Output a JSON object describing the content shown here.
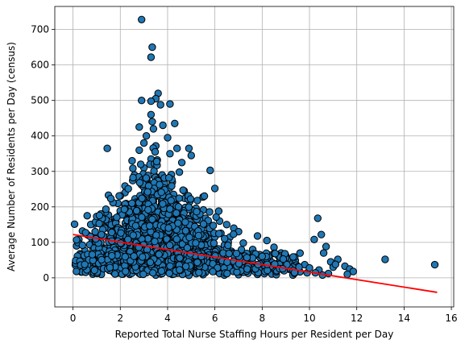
{
  "chart_data": {
    "type": "scatter",
    "title": "",
    "xlabel": "Reported Total Nurse Staffing Hours per Resident per Day",
    "ylabel": "Average Number of Residents per Day (census)",
    "xlim": [
      -0.77,
      16.1
    ],
    "ylim": [
      -82,
      765
    ],
    "xticks": [
      0,
      2,
      4,
      6,
      8,
      10,
      12,
      14,
      16
    ],
    "yticks": [
      0,
      100,
      200,
      300,
      400,
      500,
      600,
      700
    ],
    "grid": true,
    "legend": "none",
    "colors": {
      "point_fill": "#1f77b4",
      "point_edge": "#000000",
      "trend_line": "#ff0000",
      "grid": "#b0b0b0"
    },
    "trend_line": {
      "x": [
        0,
        15.4
      ],
      "y": [
        122,
        -41
      ]
    },
    "points": [
      [
        2.9,
        728
      ],
      [
        3.35,
        650
      ],
      [
        3.3,
        622
      ],
      [
        3.6,
        520
      ],
      [
        3.5,
        505
      ],
      [
        2.9,
        500
      ],
      [
        3.3,
        498
      ],
      [
        4.1,
        490
      ],
      [
        3.7,
        488
      ],
      [
        3.3,
        460
      ],
      [
        3.8,
        430
      ],
      [
        3.35,
        440
      ],
      [
        4.3,
        435
      ],
      [
        2.8,
        425
      ],
      [
        3.4,
        420
      ],
      [
        3.1,
        400
      ],
      [
        4.0,
        395
      ],
      [
        3.0,
        380
      ],
      [
        3.5,
        372
      ],
      [
        4.4,
        365
      ],
      [
        4.9,
        365
      ],
      [
        1.45,
        365
      ],
      [
        2.8,
        360
      ],
      [
        4.1,
        350
      ],
      [
        5.0,
        345
      ],
      [
        3.3,
        335
      ],
      [
        2.5,
        330
      ],
      [
        4.6,
        325
      ],
      [
        3.0,
        310
      ],
      [
        5.8,
        303
      ],
      [
        4.5,
        298
      ],
      [
        2.6,
        290
      ],
      [
        3.5,
        285
      ],
      [
        3.9,
        280
      ],
      [
        4.2,
        270
      ],
      [
        2.9,
        262
      ],
      [
        6.0,
        252
      ],
      [
        3.6,
        250
      ],
      [
        4.7,
        245
      ],
      [
        2.2,
        240
      ],
      [
        1.5,
        233
      ],
      [
        3.2,
        232
      ],
      [
        5.5,
        228
      ],
      [
        2.7,
        220
      ],
      [
        3.8,
        215
      ],
      [
        1.9,
        210
      ],
      [
        4.3,
        205
      ],
      [
        2.4,
        200
      ],
      [
        5.2,
        196
      ],
      [
        3.1,
        190
      ],
      [
        4.6,
        185
      ],
      [
        2.0,
        180
      ],
      [
        0.6,
        175
      ],
      [
        3.4,
        172
      ],
      [
        5.6,
        168
      ],
      [
        2.3,
        165
      ],
      [
        6.2,
        160
      ],
      [
        4.0,
        158
      ],
      [
        1.7,
        155
      ],
      [
        0.9,
        152
      ],
      [
        6.5,
        150
      ],
      [
        3.7,
        148
      ],
      [
        5.0,
        145
      ],
      [
        2.6,
        142
      ],
      [
        0.4,
        132
      ],
      [
        6.8,
        140
      ],
      [
        4.4,
        138
      ],
      [
        1.8,
        136
      ],
      [
        7.0,
        130
      ],
      [
        2.9,
        128
      ],
      [
        5.4,
        126
      ],
      [
        3.3,
        124
      ],
      [
        1.2,
        120
      ],
      [
        7.8,
        118
      ],
      [
        8.2,
        105
      ],
      [
        6.0,
        115
      ],
      [
        4.8,
        112
      ],
      [
        2.1,
        110
      ],
      [
        0.25,
        108
      ],
      [
        3.6,
        106
      ],
      [
        5.7,
        104
      ],
      [
        1.6,
        102
      ],
      [
        0.8,
        100
      ],
      [
        7.2,
        98
      ],
      [
        4.2,
        96
      ],
      [
        2.4,
        94
      ],
      [
        6.4,
        92
      ],
      [
        0.15,
        90
      ],
      [
        3.9,
        88
      ],
      [
        8.5,
        86
      ],
      [
        5.1,
        85
      ],
      [
        1.3,
        84
      ],
      [
        2.8,
        82
      ],
      [
        7.6,
        80
      ],
      [
        4.6,
        78
      ],
      [
        0.5,
        76
      ],
      [
        6.7,
        75
      ],
      [
        3.1,
        74
      ],
      [
        1.9,
        72
      ],
      [
        5.9,
        71
      ],
      [
        8.8,
        70
      ],
      [
        2.5,
        69
      ],
      [
        0.3,
        68
      ],
      [
        4.0,
        67
      ],
      [
        7.3,
        66
      ],
      [
        1.1,
        65
      ],
      [
        3.5,
        64
      ],
      [
        6.1,
        63
      ],
      [
        9.0,
        62
      ],
      [
        2.2,
        61
      ],
      [
        4.9,
        60
      ],
      [
        0.7,
        59
      ],
      [
        7.9,
        58
      ],
      [
        3.8,
        57
      ],
      [
        1.5,
        56
      ],
      [
        5.5,
        55
      ],
      [
        8.3,
        54
      ],
      [
        2.7,
        53
      ],
      [
        0.2,
        52
      ],
      [
        6.9,
        51
      ],
      [
        4.3,
        50
      ],
      [
        9.4,
        49
      ],
      [
        1.8,
        48
      ],
      [
        3.2,
        47
      ],
      [
        5.8,
        46
      ],
      [
        0.45,
        45
      ],
      [
        7.5,
        44
      ],
      [
        2.3,
        43
      ],
      [
        4.7,
        42
      ],
      [
        8.7,
        41
      ],
      [
        1.0,
        40
      ],
      [
        6.3,
        39
      ],
      [
        3.6,
        38
      ],
      [
        9.8,
        37
      ],
      [
        0.1,
        36
      ],
      [
        5.2,
        35
      ],
      [
        2.0,
        34
      ],
      [
        7.1,
        33
      ],
      [
        4.1,
        32
      ],
      [
        8.1,
        31
      ],
      [
        1.4,
        30
      ],
      [
        6.6,
        29
      ],
      [
        3.0,
        28
      ],
      [
        9.2,
        27
      ],
      [
        0.6,
        26
      ],
      [
        5.0,
        25
      ],
      [
        2.6,
        24
      ],
      [
        7.7,
        23
      ],
      [
        4.5,
        22
      ],
      [
        8.9,
        21
      ],
      [
        1.7,
        20
      ],
      [
        6.0,
        19
      ],
      [
        3.4,
        18
      ],
      [
        9.6,
        17
      ],
      [
        0.35,
        16
      ],
      [
        5.6,
        15
      ],
      [
        2.9,
        14
      ],
      [
        7.4,
        13
      ],
      [
        4.8,
        12
      ],
      [
        8.4,
        11
      ],
      [
        1.2,
        10
      ],
      [
        6.2,
        12
      ],
      [
        3.7,
        15
      ],
      [
        9.9,
        14
      ],
      [
        2.1,
        18
      ],
      [
        5.3,
        20
      ],
      [
        10.0,
        28
      ],
      [
        10.2,
        108
      ],
      [
        10.35,
        168
      ],
      [
        10.5,
        122
      ],
      [
        10.7,
        88
      ],
      [
        10.6,
        70
      ],
      [
        10.9,
        45
      ],
      [
        11.0,
        30
      ],
      [
        10.8,
        12
      ],
      [
        11.2,
        52
      ],
      [
        11.5,
        33
      ],
      [
        11.7,
        25
      ],
      [
        11.85,
        18
      ],
      [
        10.4,
        22
      ],
      [
        11.1,
        38
      ],
      [
        10.25,
        14
      ],
      [
        11.6,
        10
      ],
      [
        10.55,
        8
      ],
      [
        13.2,
        52
      ],
      [
        15.3,
        37
      ],
      [
        3.0,
        12
      ],
      [
        3.5,
        8
      ],
      [
        4.2,
        10
      ],
      [
        4.9,
        7
      ],
      [
        5.5,
        9
      ],
      [
        6.4,
        8
      ],
      [
        2.4,
        10
      ],
      [
        1.9,
        14
      ],
      [
        7.0,
        9
      ],
      [
        7.8,
        10
      ],
      [
        8.6,
        9
      ],
      [
        9.3,
        8
      ]
    ]
  }
}
